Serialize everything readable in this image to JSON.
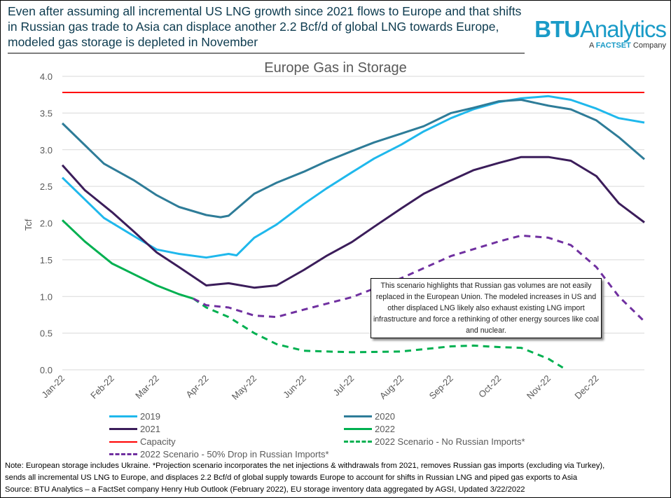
{
  "headline": "Even after assuming all incremental US LNG growth since 2021 flows to Europe and that shifts in Russian gas trade to Asia can displace another 2.2 Bcf/d of global LNG towards Europe, modeled gas storage is depleted in November",
  "logo": {
    "brand_bold": "BTU",
    "brand_rest": "Analytics",
    "sub_prefix": "A ",
    "sub_brand": "FACTSET",
    "sub_suffix": " Company"
  },
  "callout": "This scenario highlights that Russian gas volumes are not easily replaced in the European Union. The modeled increases in US and other displaced LNG likely also exhaust existing LNG import infrastructure and force a rethinking of other energy sources like coal and nuclear.",
  "note": {
    "line1": "Note:  European storage includes Ukraine. *Projection scenario incorporates the net injections & withdrawals from 2021, removes Russian gas imports (excluding via Turkey),",
    "line2": "sends all incremental US LNG to Europe, and displaces 2.2 Bcf/d of global supply towards Europe to account for shifts in Russian LNG and piped gas exports to Asia",
    "line3": "Source: BTU Analytics – a FactSet company Henry Hub Outlook (February 2022), EU storage inventory data aggregated by AGSI, Updated 3/22/2022"
  },
  "chart_data": {
    "type": "line",
    "title": "Europe Gas in Storage",
    "ylabel": "Tcf",
    "xlabel": "",
    "ylim": [
      0,
      4.0
    ],
    "yticks": [
      "0.0",
      "0.5",
      "1.0",
      "1.5",
      "2.0",
      "2.5",
      "3.0",
      "3.5",
      "4.0"
    ],
    "xlim": [
      "2022-01-01",
      "2022-12-31"
    ],
    "xticks": [
      "Jan-22",
      "Feb-22",
      "Mar-22",
      "Apr-22",
      "May-22",
      "Jun-22",
      "Jul-22",
      "Aug-22",
      "Sep-22",
      "Oct-22",
      "Nov-22",
      "Dec-22"
    ],
    "grid": "horizontal",
    "legend_placement": "bottom",
    "series": [
      {
        "name": "2019",
        "color": "#1fb8ec",
        "dash": false,
        "points": [
          [
            "2022-01-01",
            2.62
          ],
          [
            "2022-01-27",
            2.07
          ],
          [
            "2022-02-15",
            1.82
          ],
          [
            "2022-03-01",
            1.64
          ],
          [
            "2022-03-15",
            1.58
          ],
          [
            "2022-04-01",
            1.53
          ],
          [
            "2022-04-15",
            1.58
          ],
          [
            "2022-04-20",
            1.56
          ],
          [
            "2022-05-01",
            1.8
          ],
          [
            "2022-05-15",
            1.98
          ],
          [
            "2022-06-01",
            2.26
          ],
          [
            "2022-06-15",
            2.47
          ],
          [
            "2022-07-01",
            2.69
          ],
          [
            "2022-07-15",
            2.88
          ],
          [
            "2022-08-01",
            3.07
          ],
          [
            "2022-08-15",
            3.25
          ],
          [
            "2022-09-01",
            3.43
          ],
          [
            "2022-09-15",
            3.55
          ],
          [
            "2022-10-01",
            3.65
          ],
          [
            "2022-10-15",
            3.7
          ],
          [
            "2022-11-01",
            3.73
          ],
          [
            "2022-11-15",
            3.68
          ],
          [
            "2022-12-01",
            3.56
          ],
          [
            "2022-12-15",
            3.43
          ],
          [
            "2022-12-31",
            3.37
          ]
        ]
      },
      {
        "name": "2020",
        "color": "#2e7c98",
        "dash": false,
        "points": [
          [
            "2022-01-01",
            3.36
          ],
          [
            "2022-01-27",
            2.81
          ],
          [
            "2022-02-15",
            2.58
          ],
          [
            "2022-03-01",
            2.38
          ],
          [
            "2022-03-15",
            2.22
          ],
          [
            "2022-04-01",
            2.11
          ],
          [
            "2022-04-10",
            2.08
          ],
          [
            "2022-04-15",
            2.1
          ],
          [
            "2022-05-01",
            2.4
          ],
          [
            "2022-05-15",
            2.55
          ],
          [
            "2022-06-01",
            2.7
          ],
          [
            "2022-06-15",
            2.84
          ],
          [
            "2022-07-01",
            2.98
          ],
          [
            "2022-07-15",
            3.1
          ],
          [
            "2022-08-01",
            3.22
          ],
          [
            "2022-08-15",
            3.32
          ],
          [
            "2022-09-01",
            3.5
          ],
          [
            "2022-09-15",
            3.57
          ],
          [
            "2022-10-01",
            3.66
          ],
          [
            "2022-10-15",
            3.68
          ],
          [
            "2022-11-01",
            3.6
          ],
          [
            "2022-11-15",
            3.55
          ],
          [
            "2022-12-01",
            3.4
          ],
          [
            "2022-12-15",
            3.17
          ],
          [
            "2022-12-31",
            2.87
          ]
        ]
      },
      {
        "name": "2021",
        "color": "#3b1d5a",
        "dash": false,
        "points": [
          [
            "2022-01-01",
            2.79
          ],
          [
            "2022-01-15",
            2.45
          ],
          [
            "2022-02-01",
            2.15
          ],
          [
            "2022-02-15",
            1.88
          ],
          [
            "2022-03-01",
            1.6
          ],
          [
            "2022-03-15",
            1.4
          ],
          [
            "2022-04-01",
            1.15
          ],
          [
            "2022-04-15",
            1.18
          ],
          [
            "2022-05-01",
            1.12
          ],
          [
            "2022-05-15",
            1.15
          ],
          [
            "2022-06-01",
            1.36
          ],
          [
            "2022-06-15",
            1.55
          ],
          [
            "2022-07-01",
            1.74
          ],
          [
            "2022-07-15",
            1.95
          ],
          [
            "2022-08-01",
            2.2
          ],
          [
            "2022-08-15",
            2.4
          ],
          [
            "2022-09-01",
            2.58
          ],
          [
            "2022-09-15",
            2.72
          ],
          [
            "2022-10-01",
            2.82
          ],
          [
            "2022-10-15",
            2.9
          ],
          [
            "2022-11-01",
            2.9
          ],
          [
            "2022-11-15",
            2.85
          ],
          [
            "2022-12-01",
            2.64
          ],
          [
            "2022-12-15",
            2.27
          ],
          [
            "2022-12-31",
            2.01
          ]
        ]
      },
      {
        "name": "2022",
        "color": "#00b050",
        "dash": false,
        "points": [
          [
            "2022-01-01",
            2.04
          ],
          [
            "2022-01-15",
            1.75
          ],
          [
            "2022-02-01",
            1.45
          ],
          [
            "2022-02-15",
            1.3
          ],
          [
            "2022-03-01",
            1.15
          ],
          [
            "2022-03-15",
            1.03
          ],
          [
            "2022-03-24",
            0.97
          ]
        ]
      },
      {
        "name": "Capacity",
        "color": "#ff0000",
        "dash": false,
        "points": [
          [
            "2022-01-01",
            3.78
          ],
          [
            "2022-12-31",
            3.78
          ]
        ]
      },
      {
        "name": "2022 Scenario - No Russian Imports*",
        "color": "#00b050",
        "dash": true,
        "points": [
          [
            "2022-03-24",
            0.97
          ],
          [
            "2022-04-01",
            0.85
          ],
          [
            "2022-04-15",
            0.72
          ],
          [
            "2022-05-01",
            0.5
          ],
          [
            "2022-05-15",
            0.35
          ],
          [
            "2022-06-01",
            0.26
          ],
          [
            "2022-07-01",
            0.24
          ],
          [
            "2022-08-01",
            0.25
          ],
          [
            "2022-09-01",
            0.32
          ],
          [
            "2022-09-15",
            0.33
          ],
          [
            "2022-10-01",
            0.31
          ],
          [
            "2022-10-15",
            0.3
          ],
          [
            "2022-11-01",
            0.15
          ],
          [
            "2022-11-10",
            0.03
          ]
        ]
      },
      {
        "name": "2022 Scenario - 50% Drop in Russian Imports*",
        "color": "#7030a0",
        "dash": true,
        "points": [
          [
            "2022-03-24",
            0.97
          ],
          [
            "2022-04-01",
            0.88
          ],
          [
            "2022-04-15",
            0.85
          ],
          [
            "2022-05-01",
            0.74
          ],
          [
            "2022-05-15",
            0.72
          ],
          [
            "2022-06-01",
            0.82
          ],
          [
            "2022-07-01",
            0.99
          ],
          [
            "2022-08-01",
            1.25
          ],
          [
            "2022-09-01",
            1.55
          ],
          [
            "2022-10-01",
            1.75
          ],
          [
            "2022-10-15",
            1.83
          ],
          [
            "2022-11-01",
            1.8
          ],
          [
            "2022-11-15",
            1.7
          ],
          [
            "2022-12-01",
            1.4
          ],
          [
            "2022-12-15",
            1.0
          ],
          [
            "2022-12-31",
            0.66
          ]
        ]
      }
    ]
  }
}
